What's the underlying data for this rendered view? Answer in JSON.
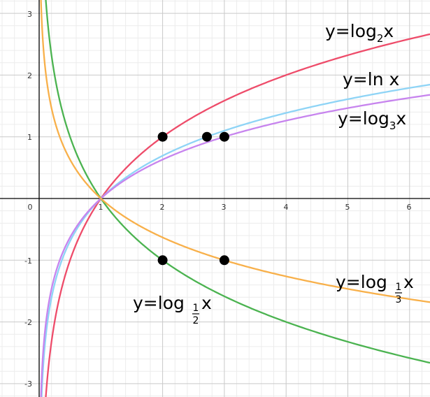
{
  "chart_data": {
    "type": "line",
    "title": "",
    "xlabel": "",
    "ylabel": "",
    "xlim": [
      -0.5,
      6.3
    ],
    "ylim": [
      -3.2,
      3.25
    ],
    "grid": true,
    "x_ticks": [
      "0",
      "1",
      "2",
      "3",
      "4",
      "5",
      "6"
    ],
    "y_ticks": [
      "3",
      "2",
      "1",
      "-1",
      "-2",
      "-3"
    ],
    "series": [
      {
        "name": "y=log",
        "base": 2,
        "base_label": "2",
        "color": "#ee4c6a",
        "label": {
          "prefix": "y=log",
          "sub": "2",
          "suffix": "x"
        }
      },
      {
        "name": "y=ln x",
        "base": 2.718281828,
        "color": "#8ed4f6",
        "label": {
          "prefix": "y=ln x",
          "sub": "",
          "suffix": ""
        }
      },
      {
        "name": "y=log",
        "base": 3,
        "color": "#c784ee",
        "label": {
          "prefix": "y=log",
          "sub": "3",
          "suffix": "x"
        }
      },
      {
        "name": "y=log",
        "base": 0.5,
        "color": "#4bb350",
        "label": {
          "prefix": "y=log",
          "frac_num": "1",
          "frac_den": "2",
          "suffix": "x"
        }
      },
      {
        "name": "y=log",
        "base": 0.3333333,
        "color": "#f8b04a",
        "label": {
          "prefix": "y=log",
          "frac_num": "1",
          "frac_den": "3",
          "suffix": "x"
        }
      }
    ],
    "points": [
      {
        "x": 2,
        "y": 1
      },
      {
        "x": 2.718,
        "y": 1
      },
      {
        "x": 3,
        "y": 1
      },
      {
        "x": 2,
        "y": -1
      },
      {
        "x": 3,
        "y": -1
      }
    ]
  }
}
